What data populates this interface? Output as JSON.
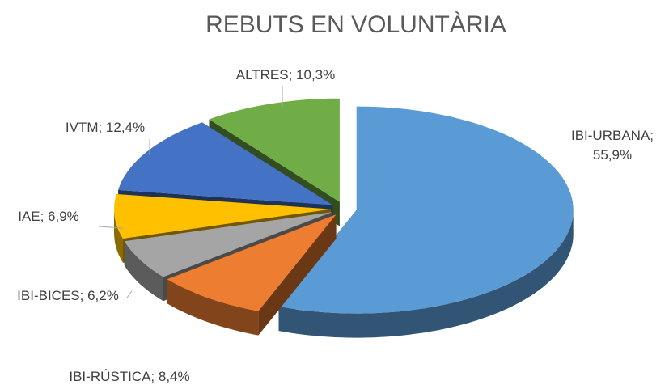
{
  "chart_data": {
    "type": "pie3d",
    "title": "REBUTS EN VOLUNTÀRIA",
    "values": [
      55.9,
      8.4,
      6.2,
      6.9,
      12.4,
      10.3
    ],
    "value_labels": [
      "IBI-URBANA; 55,9%",
      "IBI-RÚSTICA; 8,4%",
      "IBI-BICES; 6,2%",
      "IAE; 6,9%",
      "IVTM; 12,4%",
      "ALTRES; 10,3%"
    ],
    "colors": [
      "#5b9bd5",
      "#ed7d31",
      "#a5a5a5",
      "#ffc000",
      "#4472c4",
      "#70ad47"
    ]
  }
}
